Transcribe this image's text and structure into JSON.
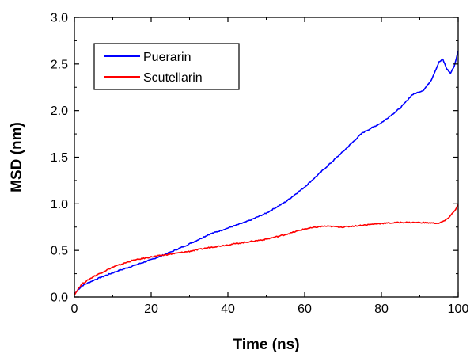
{
  "chart_data": {
    "type": "line",
    "xlabel": "Time (ns)",
    "ylabel": "MSD (nm)",
    "xlim": [
      0,
      100
    ],
    "ylim": [
      0,
      3.0
    ],
    "x_ticks": [
      0,
      20,
      40,
      60,
      80,
      100
    ],
    "y_ticks": [
      0.0,
      0.5,
      1.0,
      1.5,
      2.0,
      2.5,
      3.0
    ],
    "x_tick_labels": [
      "0",
      "20",
      "40",
      "60",
      "80",
      "100"
    ],
    "y_tick_labels": [
      "0.0",
      "0.5",
      "1.0",
      "1.5",
      "2.0",
      "2.5",
      "3.0"
    ],
    "grid": false,
    "legend_position": "top-left",
    "series": [
      {
        "name": "Puerarin",
        "color": "#0000ff",
        "points": [
          [
            0,
            0.03
          ],
          [
            1,
            0.08
          ],
          [
            2,
            0.12
          ],
          [
            5,
            0.18
          ],
          [
            10,
            0.26
          ],
          [
            15,
            0.33
          ],
          [
            20,
            0.4
          ],
          [
            25,
            0.48
          ],
          [
            30,
            0.57
          ],
          [
            35,
            0.67
          ],
          [
            40,
            0.74
          ],
          [
            45,
            0.81
          ],
          [
            50,
            0.9
          ],
          [
            55,
            1.02
          ],
          [
            60,
            1.18
          ],
          [
            65,
            1.37
          ],
          [
            70,
            1.56
          ],
          [
            75,
            1.76
          ],
          [
            80,
            1.87
          ],
          [
            85,
            2.03
          ],
          [
            88,
            2.17
          ],
          [
            91,
            2.22
          ],
          [
            93,
            2.33
          ],
          [
            95,
            2.52
          ],
          [
            96,
            2.55
          ],
          [
            97,
            2.45
          ],
          [
            98,
            2.4
          ],
          [
            99,
            2.48
          ],
          [
            100,
            2.64
          ]
        ]
      },
      {
        "name": "Scutellarin",
        "color": "#ff0000",
        "points": [
          [
            0,
            0.02
          ],
          [
            1,
            0.09
          ],
          [
            2,
            0.14
          ],
          [
            5,
            0.22
          ],
          [
            10,
            0.32
          ],
          [
            15,
            0.39
          ],
          [
            20,
            0.43
          ],
          [
            25,
            0.46
          ],
          [
            30,
            0.49
          ],
          [
            35,
            0.53
          ],
          [
            40,
            0.56
          ],
          [
            45,
            0.59
          ],
          [
            50,
            0.62
          ],
          [
            55,
            0.67
          ],
          [
            60,
            0.73
          ],
          [
            65,
            0.76
          ],
          [
            70,
            0.75
          ],
          [
            75,
            0.77
          ],
          [
            80,
            0.79
          ],
          [
            85,
            0.8
          ],
          [
            90,
            0.8
          ],
          [
            95,
            0.79
          ],
          [
            97,
            0.83
          ],
          [
            99,
            0.92
          ],
          [
            100,
            0.99
          ]
        ]
      }
    ]
  }
}
